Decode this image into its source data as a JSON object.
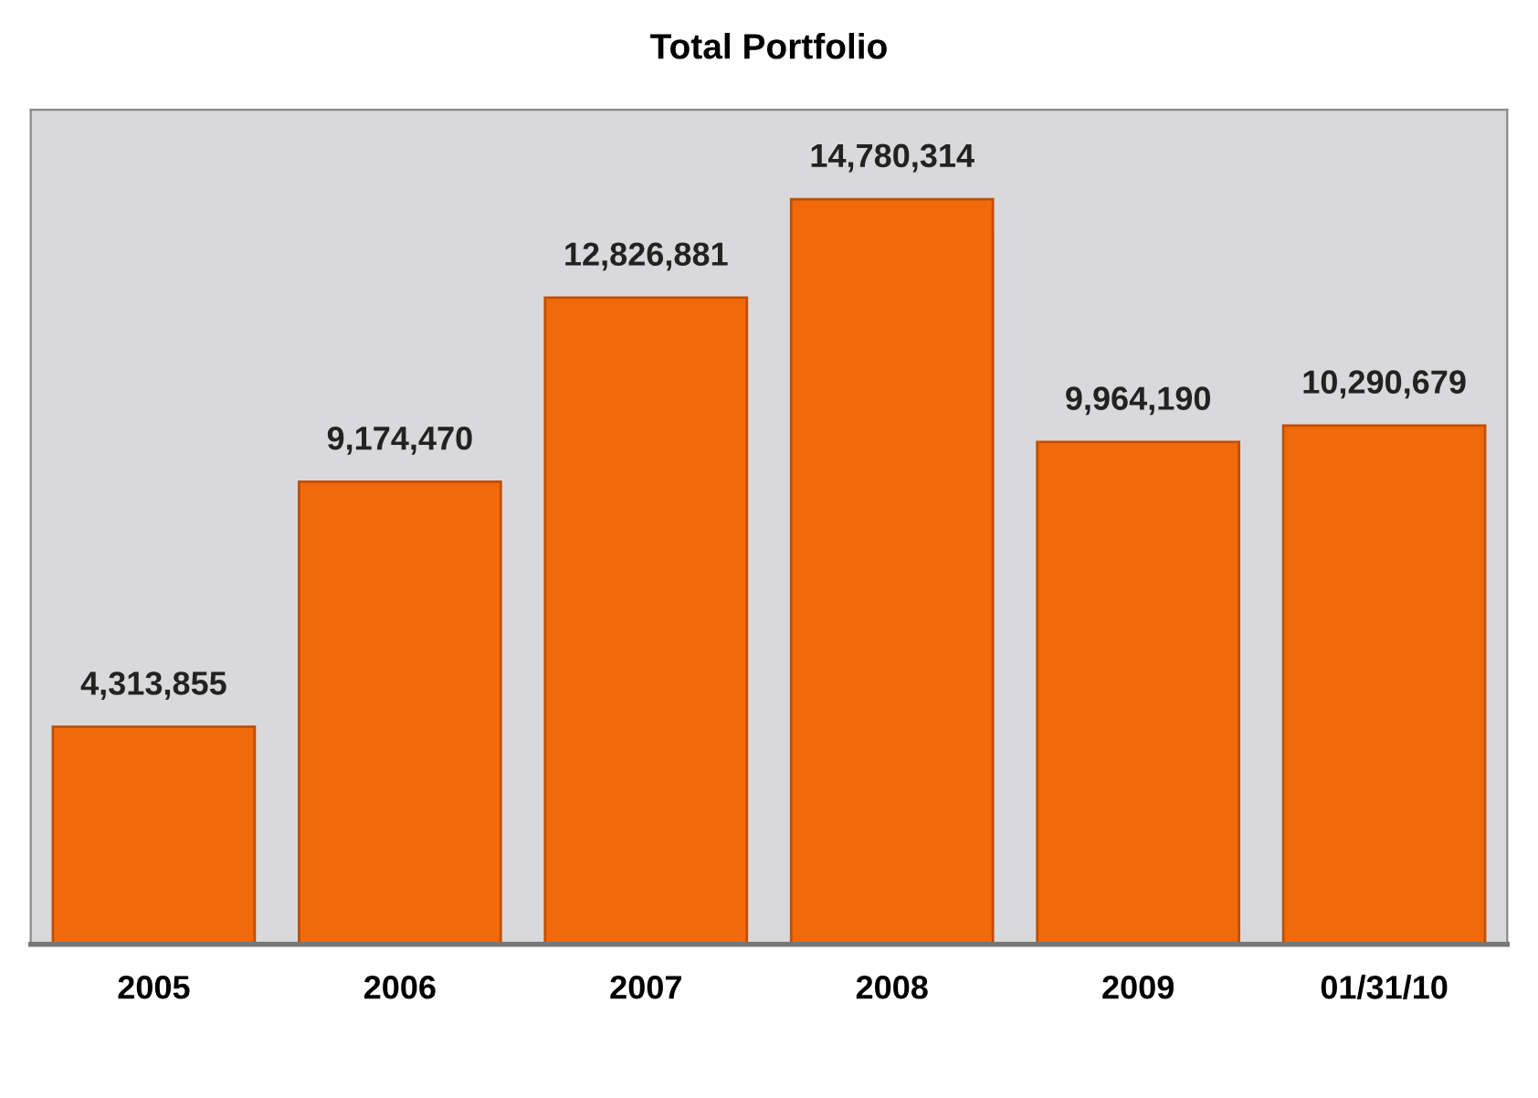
{
  "chart_data": {
    "type": "bar",
    "title": "Total Portfolio",
    "categories": [
      "2005",
      "2006",
      "2007",
      "2008",
      "2009",
      "01/31/10"
    ],
    "values": [
      4313855,
      9174470,
      12826881,
      14780314,
      9964190,
      10290679
    ],
    "color": "#f06a0c",
    "value_labels": [
      "4,313,855",
      "9,174,470",
      "12,826,881",
      "14,780,314",
      "9,964,190",
      "10,290,679"
    ]
  }
}
